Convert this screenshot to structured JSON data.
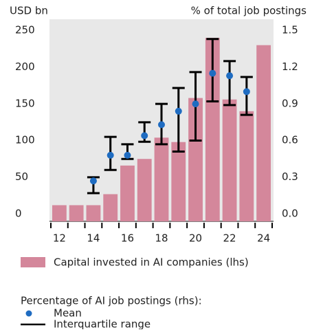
{
  "chart_data": {
    "type": "bar-errorbar",
    "y_label": "USD bn",
    "y2_label": "% of total job postings",
    "x": [
      12,
      13,
      14,
      15,
      16,
      17,
      18,
      19,
      20,
      21,
      22,
      23,
      24
    ],
    "xlim": [
      11.5,
      24.5
    ],
    "xticks": [
      12,
      14,
      16,
      18,
      20,
      22,
      24
    ],
    "ylim": [
      0,
      250
    ],
    "yticks": [
      0,
      50,
      100,
      150,
      200,
      250
    ],
    "y2lim": [
      0,
      1.5
    ],
    "y2ticks": [
      {
        "value": 0,
        "label": "0.0"
      },
      0.3,
      0.6,
      0.9,
      1.2,
      1.5
    ],
    "series": [
      {
        "name": "Capital invested in AI companies (lhs)",
        "color": "#d4879b",
        "values": [
          22,
          22,
          22,
          37,
          76,
          85,
          114,
          108,
          168,
          250,
          166,
          150,
          240
        ]
      },
      {
        "name": "Mean",
        "color": "#1f6cc1",
        "axis": "y2",
        "values": [
          null,
          null,
          0.33,
          0.54,
          0.54,
          0.7,
          0.79,
          0.9,
          0.96,
          1.21,
          1.19,
          1.06,
          null
        ]
      },
      {
        "name": "Interquartile range",
        "color": "#000000",
        "axis": "y2",
        "low": [
          null,
          null,
          0.23,
          0.42,
          0.51,
          0.65,
          0.63,
          0.57,
          0.66,
          0.98,
          0.95,
          0.87,
          null
        ],
        "high": [
          null,
          null,
          0.36,
          0.69,
          0.63,
          0.81,
          0.96,
          1.09,
          1.22,
          1.49,
          1.31,
          1.18,
          null
        ]
      }
    ],
    "legend_heading": "Percentage of AI job postings (rhs):"
  }
}
